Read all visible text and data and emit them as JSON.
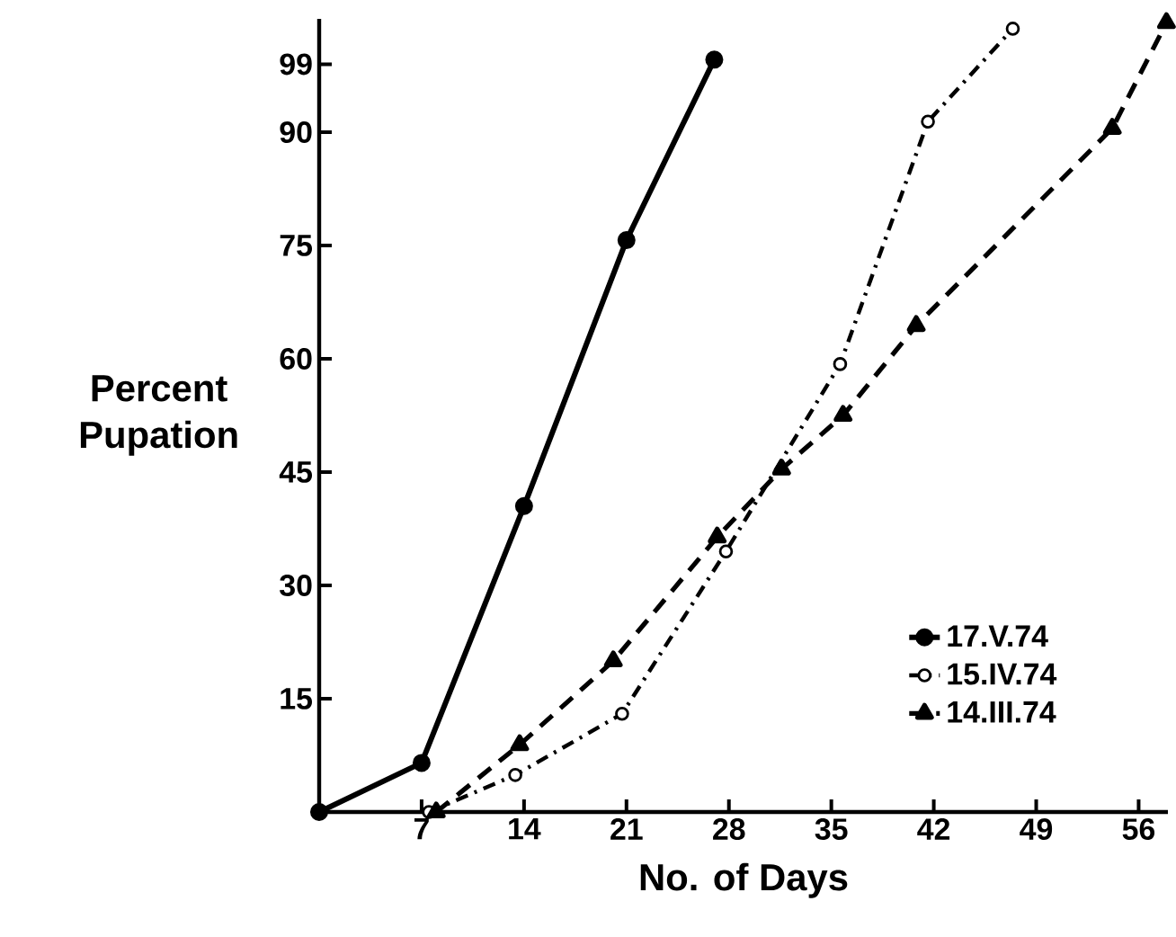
{
  "chart_data": {
    "type": "line",
    "xlabel": "No. of Days",
    "ylabel": "Percent Pupation",
    "xlim": [
      0,
      58
    ],
    "ylim": [
      0,
      105
    ],
    "xticks": [
      7,
      14,
      21,
      28,
      35,
      42,
      49,
      56
    ],
    "yticks": [
      15,
      30,
      45,
      60,
      75,
      90,
      99
    ],
    "legend": "bottom right",
    "series": [
      {
        "name": "17.V.74",
        "color": "#000000",
        "marker": "circle",
        "line_style": "solid",
        "x": [
          0,
          7,
          14,
          21,
          27
        ],
        "values": [
          0,
          6.5,
          40.5,
          75.7,
          99.6
        ]
      },
      {
        "name": "15.IV.74",
        "color": "#000000",
        "marker": "open circle",
        "line_style": "dashdot",
        "x": [
          7.5,
          13.4,
          20.7,
          27.8,
          35.6,
          41.6,
          47.4
        ],
        "values": [
          0,
          4.9,
          13,
          34.5,
          59.3,
          91.4,
          103.7
        ]
      },
      {
        "name": "14.III.74",
        "color": "#000000",
        "marker": "triangle",
        "line_style": "dashed",
        "x": [
          8,
          13.7,
          20.1,
          27.2,
          31.6,
          35.8,
          40.8,
          54.2,
          57.9
        ],
        "values": [
          0,
          8.9,
          20,
          36.4,
          45.4,
          52.5,
          64.4,
          90.5,
          104.5
        ]
      }
    ]
  }
}
